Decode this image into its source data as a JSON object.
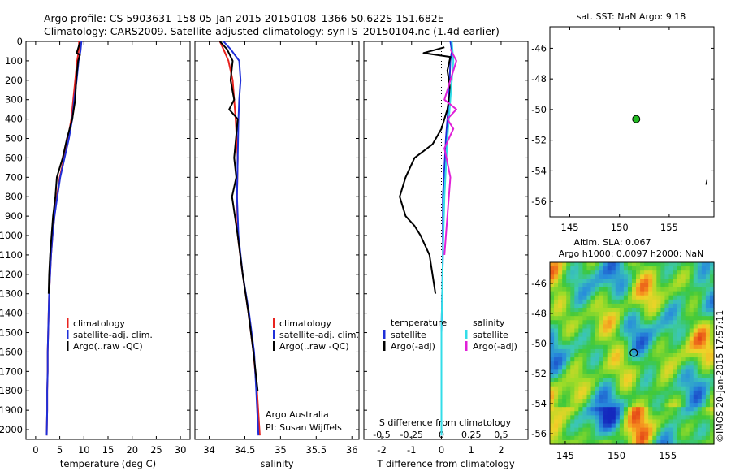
{
  "header": {
    "line1": "Argo profile: CS 5903631_158 05-Jan-2015 20150108_1366 50.622S 151.682E",
    "line2": "Climatology: CARS2009. Satellite-adjusted climatology: synTS_20150104.nc (1.4d earlier)"
  },
  "colors": {
    "climatology": "#e8231f",
    "satellite": "#1f2fd8",
    "argo": "#000000",
    "t_satellite": "#2f9fe0",
    "s_satellite": "#33dde8",
    "s_argo": "#e020d8",
    "argo_marker": "#22bb22"
  },
  "chart_data": [
    {
      "id": "temperature",
      "type": "line",
      "xlabel": "temperature (deg C)",
      "ylabel": "",
      "xlim": [
        -2,
        32
      ],
      "ylim": [
        2050,
        0
      ],
      "xticks": [
        "0",
        "5",
        "10",
        "15",
        "20",
        "25",
        "30"
      ],
      "yticks": [
        "0",
        "100",
        "200",
        "300",
        "400",
        "500",
        "600",
        "700",
        "800",
        "900",
        "1000",
        "1100",
        "1200",
        "1300",
        "1400",
        "1500",
        "1600",
        "1700",
        "1800",
        "1900",
        "2000"
      ],
      "legend": [
        "climatology",
        "satellite-adj. clim.",
        "Argo(..raw -QC)"
      ],
      "series": [
        {
          "name": "climatology",
          "color": "red",
          "values": [
            [
              9.0,
              0
            ],
            [
              8.9,
              50
            ],
            [
              8.6,
              100
            ],
            [
              8.2,
              200
            ],
            [
              7.8,
              300
            ],
            [
              7.4,
              400
            ],
            [
              6.7,
              500
            ],
            [
              5.9,
              600
            ],
            [
              5.0,
              700
            ],
            [
              4.4,
              800
            ],
            [
              3.9,
              900
            ],
            [
              3.5,
              1000
            ],
            [
              3.2,
              1100
            ],
            [
              3.0,
              1200
            ],
            [
              2.8,
              1300
            ],
            [
              2.7,
              1400
            ],
            [
              2.6,
              1500
            ],
            [
              2.5,
              1600
            ],
            [
              2.5,
              1700
            ],
            [
              2.4,
              1800
            ],
            [
              2.4,
              1900
            ],
            [
              2.3,
              2030
            ]
          ]
        },
        {
          "name": "satellite-adj. clim.",
          "color": "blue",
          "values": [
            [
              9.5,
              0
            ],
            [
              9.3,
              50
            ],
            [
              8.9,
              100
            ],
            [
              8.5,
              200
            ],
            [
              8.0,
              300
            ],
            [
              7.6,
              400
            ],
            [
              6.9,
              500
            ],
            [
              6.0,
              600
            ],
            [
              5.1,
              700
            ],
            [
              4.5,
              800
            ],
            [
              3.9,
              900
            ],
            [
              3.5,
              1000
            ],
            [
              3.2,
              1100
            ],
            [
              3.0,
              1200
            ],
            [
              2.8,
              1300
            ],
            [
              2.7,
              1400
            ],
            [
              2.6,
              1500
            ],
            [
              2.5,
              1600
            ],
            [
              2.5,
              1700
            ],
            [
              2.4,
              1800
            ],
            [
              2.4,
              1900
            ],
            [
              2.3,
              2030
            ]
          ]
        },
        {
          "name": "Argo(..raw -QC)",
          "color": "black",
          "values": [
            [
              9.2,
              5
            ],
            [
              8.5,
              60
            ],
            [
              9.2,
              70
            ],
            [
              8.8,
              100
            ],
            [
              8.4,
              200
            ],
            [
              8.2,
              300
            ],
            [
              7.6,
              400
            ],
            [
              6.5,
              500
            ],
            [
              5.6,
              600
            ],
            [
              4.4,
              700
            ],
            [
              4.1,
              800
            ],
            [
              3.6,
              900
            ],
            [
              3.3,
              1000
            ],
            [
              3.0,
              1100
            ],
            [
              2.8,
              1200
            ],
            [
              2.7,
              1300
            ]
          ]
        }
      ]
    },
    {
      "id": "salinity",
      "type": "line",
      "xlabel": "salinity",
      "xlim": [
        33.8,
        36.1
      ],
      "ylim": [
        2050,
        0
      ],
      "xticks": [
        "34",
        "34.5",
        "35",
        "35.5",
        "36"
      ],
      "legend": [
        "climatology",
        "satellite-adj. clim.",
        "Argo(..raw -QC)"
      ],
      "annotation": [
        "Argo Australia",
        "PI: Susan Wijffels"
      ],
      "series": [
        {
          "name": "climatology",
          "color": "red",
          "values": [
            [
              34.15,
              0
            ],
            [
              34.2,
              40
            ],
            [
              34.27,
              100
            ],
            [
              34.33,
              200
            ],
            [
              34.37,
              400
            ],
            [
              34.4,
              600
            ],
            [
              34.39,
              800
            ],
            [
              34.4,
              1000
            ],
            [
              34.47,
              1200
            ],
            [
              34.55,
              1400
            ],
            [
              34.62,
              1600
            ],
            [
              34.67,
              1800
            ],
            [
              34.71,
              2030
            ]
          ]
        },
        {
          "name": "satellite-adj. clim.",
          "color": "blue",
          "values": [
            [
              34.2,
              0
            ],
            [
              34.3,
              40
            ],
            [
              34.42,
              100
            ],
            [
              34.44,
              200
            ],
            [
              34.42,
              300
            ],
            [
              34.41,
              400
            ],
            [
              34.4,
              600
            ],
            [
              34.39,
              800
            ],
            [
              34.41,
              1000
            ],
            [
              34.47,
              1200
            ],
            [
              34.56,
              1400
            ],
            [
              34.63,
              1600
            ],
            [
              34.66,
              1800
            ],
            [
              34.69,
              2030
            ]
          ]
        },
        {
          "name": "Argo(..raw -QC)",
          "color": "black",
          "values": [
            [
              34.15,
              0
            ],
            [
              34.25,
              40
            ],
            [
              34.33,
              100
            ],
            [
              34.3,
              200
            ],
            [
              34.35,
              300
            ],
            [
              34.28,
              350
            ],
            [
              34.4,
              400
            ],
            [
              34.35,
              600
            ],
            [
              34.38,
              700
            ],
            [
              34.32,
              800
            ],
            [
              34.4,
              1000
            ],
            [
              34.47,
              1200
            ],
            [
              34.55,
              1400
            ],
            [
              34.62,
              1600
            ],
            [
              34.68,
              1800
            ]
          ]
        }
      ]
    },
    {
      "id": "difference",
      "type": "line",
      "xlabel": "T difference from climatology",
      "xlabel2": "S difference from climatology",
      "xlim": [
        -2.6,
        2.9
      ],
      "ylim": [
        2050,
        0
      ],
      "xticks": [
        "-2",
        "-1",
        "0",
        "1",
        "2"
      ],
      "xticks2": [
        "-0.5",
        "-0.25",
        "0",
        "0.25",
        "0.5"
      ],
      "legend_left_title": "temperature",
      "legend_left": [
        "satellite",
        "Argo(-adj)"
      ],
      "legend_right_title": "salinity",
      "legend_right": [
        "satellite",
        "Argo(-adj)"
      ],
      "series": [
        {
          "name": "T satellite",
          "color": "blue",
          "values": [
            [
              0.3,
              0
            ],
            [
              0.35,
              50
            ],
            [
              0.3,
              100
            ],
            [
              0.25,
              300
            ],
            [
              0.15,
              500
            ],
            [
              0.05,
              800
            ],
            [
              0.05,
              1100
            ],
            [
              0.0,
              1500
            ],
            [
              0.0,
              2030
            ]
          ]
        },
        {
          "name": "T Argo(-adj)",
          "color": "black",
          "values": [
            [
              0.1,
              30
            ],
            [
              -0.6,
              60
            ],
            [
              0.3,
              80
            ],
            [
              0.2,
              150
            ],
            [
              0.3,
              250
            ],
            [
              0.2,
              350
            ],
            [
              0.0,
              450
            ],
            [
              -0.3,
              530
            ],
            [
              -0.9,
              600
            ],
            [
              -1.2,
              700
            ],
            [
              -1.4,
              800
            ],
            [
              -1.2,
              900
            ],
            [
              -0.9,
              950
            ],
            [
              -0.7,
              1000
            ],
            [
              -0.4,
              1100
            ],
            [
              -0.2,
              1300
            ]
          ]
        },
        {
          "name": "S satellite",
          "color": "cyan",
          "values": [
            [
              0.35,
              0
            ],
            [
              0.4,
              100
            ],
            [
              0.35,
              200
            ],
            [
              0.3,
              300
            ],
            [
              0.2,
              500
            ],
            [
              0.1,
              800
            ],
            [
              0.05,
              1100
            ],
            [
              0.0,
              1500
            ],
            [
              0.0,
              2030
            ]
          ]
        },
        {
          "name": "S Argo(-adj)",
          "color": "magenta",
          "values": [
            [
              0.3,
              40
            ],
            [
              0.5,
              100
            ],
            [
              0.3,
              200
            ],
            [
              0.1,
              300
            ],
            [
              0.5,
              350
            ],
            [
              0.2,
              400
            ],
            [
              0.4,
              450
            ],
            [
              0.1,
              550
            ],
            [
              0.3,
              700
            ],
            [
              0.2,
              900
            ],
            [
              0.1,
              1100
            ]
          ]
        }
      ]
    },
    {
      "id": "sst_map",
      "type": "scatter",
      "title": "sat. SST: NaN Argo: 9.18",
      "xlim": [
        143,
        159.5
      ],
      "ylim": [
        -57,
        -44.6
      ],
      "xticks": [
        "145",
        "150",
        "155"
      ],
      "yticks": [
        "-46",
        "-48",
        "-50",
        "-52",
        "-54",
        "-56"
      ],
      "points": [
        {
          "lon": 151.682,
          "lat": -50.622
        }
      ]
    },
    {
      "id": "sla_map",
      "type": "heatmap",
      "title": "Altim. SLA: 0.067",
      "subtitle": "Argo h1000: 0.0097 h2000: NaN",
      "xlim": [
        143.5,
        159.5
      ],
      "ylim": [
        -56.7,
        -44.6
      ],
      "xticks": [
        "145",
        "150",
        "155"
      ],
      "yticks": [
        "-46",
        "-48",
        "-50",
        "-52",
        "-54",
        "-56"
      ],
      "points": [
        {
          "lon": 151.682,
          "lat": -50.622
        }
      ]
    }
  ],
  "credit": "©IMOS 20-Jan-2015 17:57:11"
}
